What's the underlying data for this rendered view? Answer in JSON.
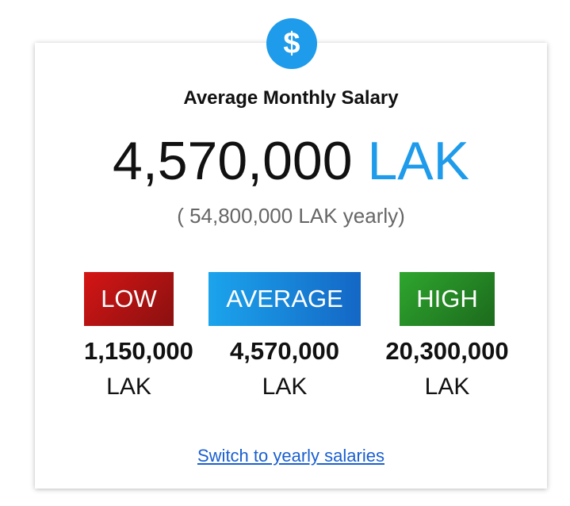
{
  "header": {
    "icon": "dollar-icon",
    "icon_glyph": "$",
    "icon_color": "#1e9bea",
    "title": "Average Monthly Salary"
  },
  "main": {
    "value": "4,570,000",
    "currency": "LAK",
    "yearly_text": "( 54,800,000 LAK yearly)"
  },
  "ranges": [
    {
      "label": "LOW",
      "value": "1,150,000",
      "unit": "LAK",
      "color": "#c81414"
    },
    {
      "label": "AVERAGE",
      "value": "4,570,000",
      "unit": "LAK",
      "color": "#1a8ad8"
    },
    {
      "label": "HIGH",
      "value": "20,300,000",
      "unit": "LAK",
      "color": "#249024"
    }
  ],
  "footer": {
    "switch_link": "Switch to yearly salaries"
  }
}
